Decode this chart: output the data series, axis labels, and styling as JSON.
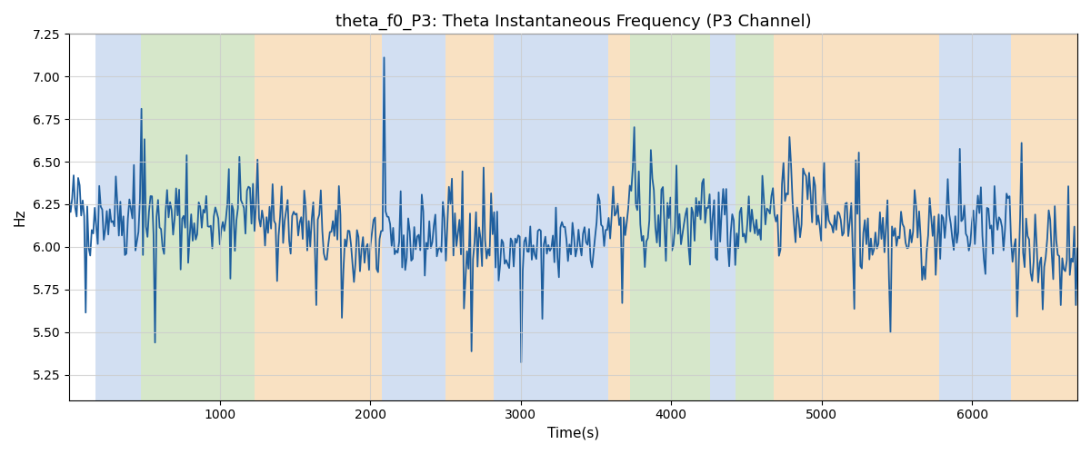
{
  "title": "theta_f0_P3: Theta Instantaneous Frequency (P3 Channel)",
  "xlabel": "Time(s)",
  "ylabel": "Hz",
  "ylim": [
    5.1,
    7.25
  ],
  "xlim": [
    0,
    6700
  ],
  "yticks": [
    5.25,
    5.5,
    5.75,
    6.0,
    6.25,
    6.5,
    6.75,
    7.0,
    7.25
  ],
  "xticks": [
    1000,
    2000,
    3000,
    4000,
    5000,
    6000
  ],
  "line_color": "#1f5f9e",
  "line_width": 1.3,
  "bg_regions": [
    {
      "start": 175,
      "end": 480,
      "color": "#aec6e8",
      "alpha": 0.55
    },
    {
      "start": 480,
      "end": 1230,
      "color": "#b5d5a0",
      "alpha": 0.55
    },
    {
      "start": 1230,
      "end": 2080,
      "color": "#f5c990",
      "alpha": 0.55
    },
    {
      "start": 2080,
      "end": 2500,
      "color": "#aec6e8",
      "alpha": 0.55
    },
    {
      "start": 2500,
      "end": 2820,
      "color": "#f5c990",
      "alpha": 0.55
    },
    {
      "start": 2820,
      "end": 3580,
      "color": "#aec6e8",
      "alpha": 0.55
    },
    {
      "start": 3580,
      "end": 3730,
      "color": "#f5c990",
      "alpha": 0.55
    },
    {
      "start": 3730,
      "end": 4260,
      "color": "#b5d5a0",
      "alpha": 0.55
    },
    {
      "start": 4260,
      "end": 4430,
      "color": "#aec6e8",
      "alpha": 0.55
    },
    {
      "start": 4430,
      "end": 4680,
      "color": "#b5d5a0",
      "alpha": 0.55
    },
    {
      "start": 4680,
      "end": 5780,
      "color": "#f5c990",
      "alpha": 0.55
    },
    {
      "start": 5780,
      "end": 6260,
      "color": "#aec6e8",
      "alpha": 0.55
    },
    {
      "start": 6260,
      "end": 6700,
      "color": "#f5c990",
      "alpha": 0.55
    }
  ],
  "seed": 42,
  "n_points": 670,
  "base_freq": 6.1,
  "noise_std": 0.155,
  "grid_color": "#cccccc",
  "grid_alpha": 0.8
}
